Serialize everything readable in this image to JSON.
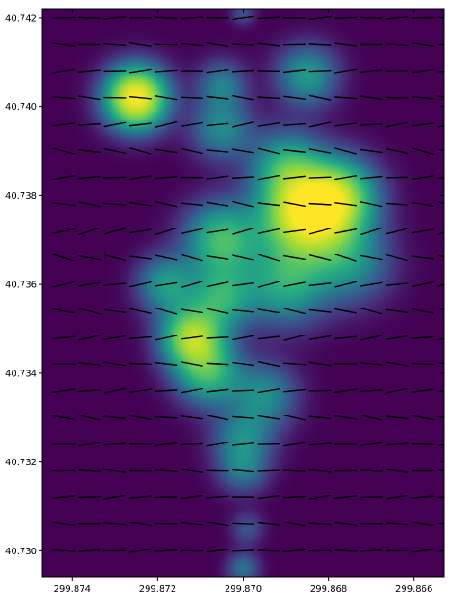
{
  "chart_data": {
    "type": "heatmap",
    "title": "",
    "xlabel": "",
    "ylabel": "",
    "xlim": [
      299.8747,
      299.8653
    ],
    "ylim": [
      40.7294,
      40.7422
    ],
    "x_ticks": [
      299.874,
      299.872,
      299.87,
      299.868,
      299.866
    ],
    "x_tick_labels": [
      "299.874",
      "299.872",
      "299.870",
      "299.868",
      "299.866"
    ],
    "y_ticks": [
      40.73,
      40.732,
      40.734,
      40.736,
      40.738,
      40.74,
      40.742
    ],
    "y_tick_labels": [
      "40.730",
      "40.732",
      "40.734",
      "40.736",
      "40.738",
      "40.740",
      "40.742"
    ],
    "grid": false,
    "colormap": "viridis",
    "background_color": "#440154",
    "density_blobs": [
      {
        "x": 299.8725,
        "y": 40.7402,
        "r": 0.00075,
        "w": 1.0
      },
      {
        "x": 299.8685,
        "y": 40.7376,
        "r": 0.0011,
        "w": 1.0
      },
      {
        "x": 299.8677,
        "y": 40.738,
        "r": 0.0009,
        "w": 0.5
      },
      {
        "x": 299.8705,
        "y": 40.737,
        "r": 0.0009,
        "w": 0.5
      },
      {
        "x": 299.869,
        "y": 40.736,
        "r": 0.001,
        "w": 0.4
      },
      {
        "x": 299.8675,
        "y": 40.7365,
        "r": 0.001,
        "w": 0.3
      },
      {
        "x": 299.8705,
        "y": 40.7357,
        "r": 0.0008,
        "w": 0.4
      },
      {
        "x": 299.8712,
        "y": 40.7348,
        "r": 0.00075,
        "w": 0.7
      },
      {
        "x": 299.8708,
        "y": 40.734,
        "r": 0.0008,
        "w": 0.45
      },
      {
        "x": 299.8718,
        "y": 40.736,
        "r": 0.0007,
        "w": 0.35
      },
      {
        "x": 299.8695,
        "y": 40.7335,
        "r": 0.0008,
        "w": 0.3
      },
      {
        "x": 299.87,
        "y": 40.7325,
        "r": 0.00075,
        "w": 0.28
      },
      {
        "x": 299.869,
        "y": 40.7387,
        "r": 0.00085,
        "w": 0.35
      },
      {
        "x": 299.8705,
        "y": 40.7395,
        "r": 0.00075,
        "w": 0.3
      },
      {
        "x": 299.8685,
        "y": 40.7407,
        "r": 0.00075,
        "w": 0.35
      },
      {
        "x": 299.8705,
        "y": 40.7405,
        "r": 0.0006,
        "w": 0.25
      },
      {
        "x": 299.87,
        "y": 40.7318,
        "r": 0.0006,
        "w": 0.2
      },
      {
        "x": 299.8699,
        "y": 40.7305,
        "r": 0.0004,
        "w": 0.15
      },
      {
        "x": 299.87,
        "y": 40.7296,
        "r": 0.0004,
        "w": 0.22
      },
      {
        "x": 299.87,
        "y": 40.7421,
        "r": 0.0003,
        "w": 0.14
      }
    ],
    "quiver": {
      "x_start": 299.8742,
      "x_step": 0.0006,
      "x_count": 16,
      "y_start": 40.73,
      "y_step": 0.0006,
      "y_count": 21,
      "length": 0.0005,
      "color": "#000000",
      "angle_rows_deg": [
        2,
        -5,
        5,
        -3,
        4,
        -8,
        6,
        -6,
        8,
        -10,
        10,
        -12,
        12,
        -8,
        5,
        -10,
        8,
        -6,
        4,
        -4,
        2
      ]
    }
  }
}
